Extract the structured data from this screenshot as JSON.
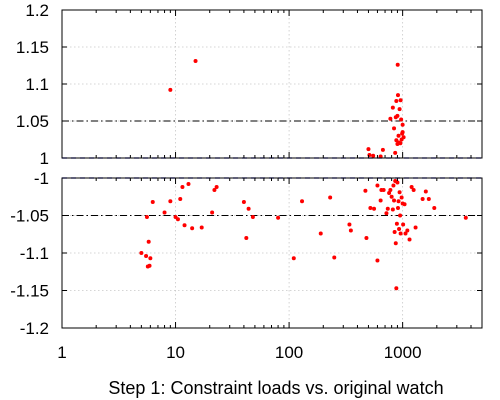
{
  "chart_data": {
    "type": "scatter",
    "title": "",
    "caption": "Step 1: Constraint loads vs. original watch",
    "x_scale": "log",
    "xlim": [
      1,
      5000
    ],
    "x_ticks": [
      1,
      10,
      100,
      1000
    ],
    "x_tick_labels": [
      "1",
      "10",
      "100",
      "1000"
    ],
    "grid": true,
    "marker_color": "#ff0000",
    "panels": [
      {
        "name": "upper",
        "ylim": [
          1.0,
          1.2
        ],
        "y_ticks": [
          1,
          1.05,
          1.1,
          1.15,
          1.2
        ],
        "y_tick_labels": [
          "1",
          "1.05",
          "1.1",
          "1.15",
          "1.2"
        ],
        "reference_line": 1.05,
        "bound_line": 1.0,
        "bound_color": "#0000cc",
        "points": [
          [
            9,
            1.092
          ],
          [
            15,
            1.131
          ],
          [
            500,
            1.012
          ],
          [
            510,
            1.004
          ],
          [
            550,
            1.003
          ],
          [
            640,
            1.002
          ],
          [
            670,
            1.011
          ],
          [
            780,
            1.053
          ],
          [
            820,
            1.068
          ],
          [
            840,
            1.04
          ],
          [
            860,
            1.007
          ],
          [
            870,
            1.055
          ],
          [
            880,
            1.077
          ],
          [
            880,
            1.024
          ],
          [
            900,
            1.057
          ],
          [
            900,
            1.019
          ],
          [
            905,
            1.126
          ],
          [
            910,
            1.085
          ],
          [
            920,
            1.03
          ],
          [
            925,
            1.021
          ],
          [
            940,
            1.066
          ],
          [
            955,
            1.02
          ],
          [
            960,
            1.078
          ],
          [
            970,
            1.052
          ],
          [
            980,
            1.025
          ],
          [
            990,
            1.033
          ],
          [
            1000,
            1.035
          ],
          [
            1000,
            1.045
          ],
          [
            1020,
            1.028
          ]
        ]
      },
      {
        "name": "lower",
        "ylim": [
          -1.2,
          -1.0
        ],
        "y_ticks": [
          -1,
          -1.05,
          -1.1,
          -1.15,
          -1.2
        ],
        "y_tick_labels": [
          "-1",
          "-1.05",
          "-1.1",
          "-1.15",
          "-1.2"
        ],
        "reference_line": -1.05,
        "bound_line": -1.0,
        "bound_color": "#0000cc",
        "points": [
          [
            5,
            -1.1
          ],
          [
            5.5,
            -1.104
          ],
          [
            5.6,
            -1.052
          ],
          [
            5.7,
            -1.118
          ],
          [
            5.8,
            -1.085
          ],
          [
            5.9,
            -1.117
          ],
          [
            6,
            -1.107
          ],
          [
            6.3,
            -1.032
          ],
          [
            8,
            -1.046
          ],
          [
            9,
            -1.031
          ],
          [
            10,
            -1.052
          ],
          [
            10.5,
            -1.055
          ],
          [
            11,
            -1.028
          ],
          [
            11.5,
            -1.012
          ],
          [
            12,
            -1.063
          ],
          [
            13,
            -1.008
          ],
          [
            14,
            -1.067
          ],
          [
            17,
            -1.066
          ],
          [
            21,
            -1.046
          ],
          [
            22,
            -1.016
          ],
          [
            23,
            -1.012
          ],
          [
            40,
            -1.032
          ],
          [
            42,
            -1.08
          ],
          [
            44,
            -1.041
          ],
          [
            48,
            -1.052
          ],
          [
            80,
            -1.053
          ],
          [
            110,
            -1.107
          ],
          [
            130,
            -1.031
          ],
          [
            190,
            -1.074
          ],
          [
            230,
            -1.026
          ],
          [
            250,
            -1.106
          ],
          [
            340,
            -1.062
          ],
          [
            350,
            -1.07
          ],
          [
            470,
            -1.017
          ],
          [
            480,
            -1.08
          ],
          [
            520,
            -1.04
          ],
          [
            560,
            -1.041
          ],
          [
            600,
            -1.01
          ],
          [
            600,
            -1.11
          ],
          [
            640,
            -1.03
          ],
          [
            650,
            -1.016
          ],
          [
            680,
            -1.016
          ],
          [
            720,
            -1.047
          ],
          [
            740,
            -1.041
          ],
          [
            760,
            -1.02
          ],
          [
            780,
            -1.016
          ],
          [
            800,
            -1.025
          ],
          [
            820,
            -1.042
          ],
          [
            830,
            -1.01
          ],
          [
            840,
            -1.03
          ],
          [
            850,
            -1.072
          ],
          [
            860,
            -1.004
          ],
          [
            870,
            -1.087
          ],
          [
            880,
            -1.147
          ],
          [
            890,
            -1.061
          ],
          [
            900,
            -1.006
          ],
          [
            910,
            -1.04
          ],
          [
            920,
            -1.031
          ],
          [
            930,
            -1.068
          ],
          [
            940,
            -1.019
          ],
          [
            950,
            -1.05
          ],
          [
            960,
            -1.074
          ],
          [
            980,
            -1.026
          ],
          [
            1000,
            -1.034
          ],
          [
            1010,
            -1.062
          ],
          [
            1040,
            -1.035
          ],
          [
            1060,
            -1.074
          ],
          [
            1100,
            -1.07
          ],
          [
            1150,
            -1.082
          ],
          [
            1200,
            -1.012
          ],
          [
            1250,
            -1.016
          ],
          [
            1300,
            -1.066
          ],
          [
            1500,
            -1.028
          ],
          [
            1600,
            -1.018
          ],
          [
            1700,
            -1.028
          ],
          [
            1900,
            -1.04
          ],
          [
            3600,
            -1.053
          ]
        ]
      }
    ]
  }
}
